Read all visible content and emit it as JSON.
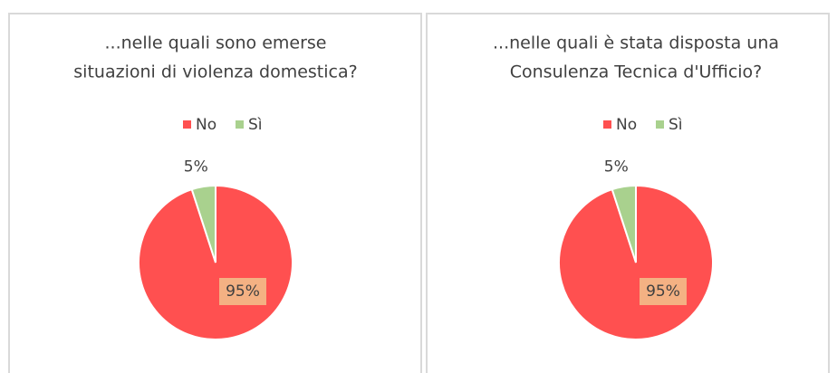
{
  "chart_data": [
    {
      "type": "pie",
      "title_lines": [
        "...nelle quali sono emerse",
        "situazioni di violenza domestica?"
      ],
      "categories": [
        "No",
        "Sì"
      ],
      "values": [
        95,
        5
      ],
      "value_labels": [
        "95%",
        "5%"
      ],
      "colors": [
        "#ff5050",
        "#a9d18e"
      ],
      "legend": "top"
    },
    {
      "type": "pie",
      "title_lines": [
        "...nelle quali è stata disposta una",
        "Consulenza Tecnica d'Ufficio?"
      ],
      "categories": [
        "No",
        "Sì"
      ],
      "values": [
        95,
        5
      ],
      "value_labels": [
        "95%",
        "5%"
      ],
      "colors": [
        "#ff5050",
        "#a9d18e"
      ],
      "legend": "top"
    }
  ]
}
